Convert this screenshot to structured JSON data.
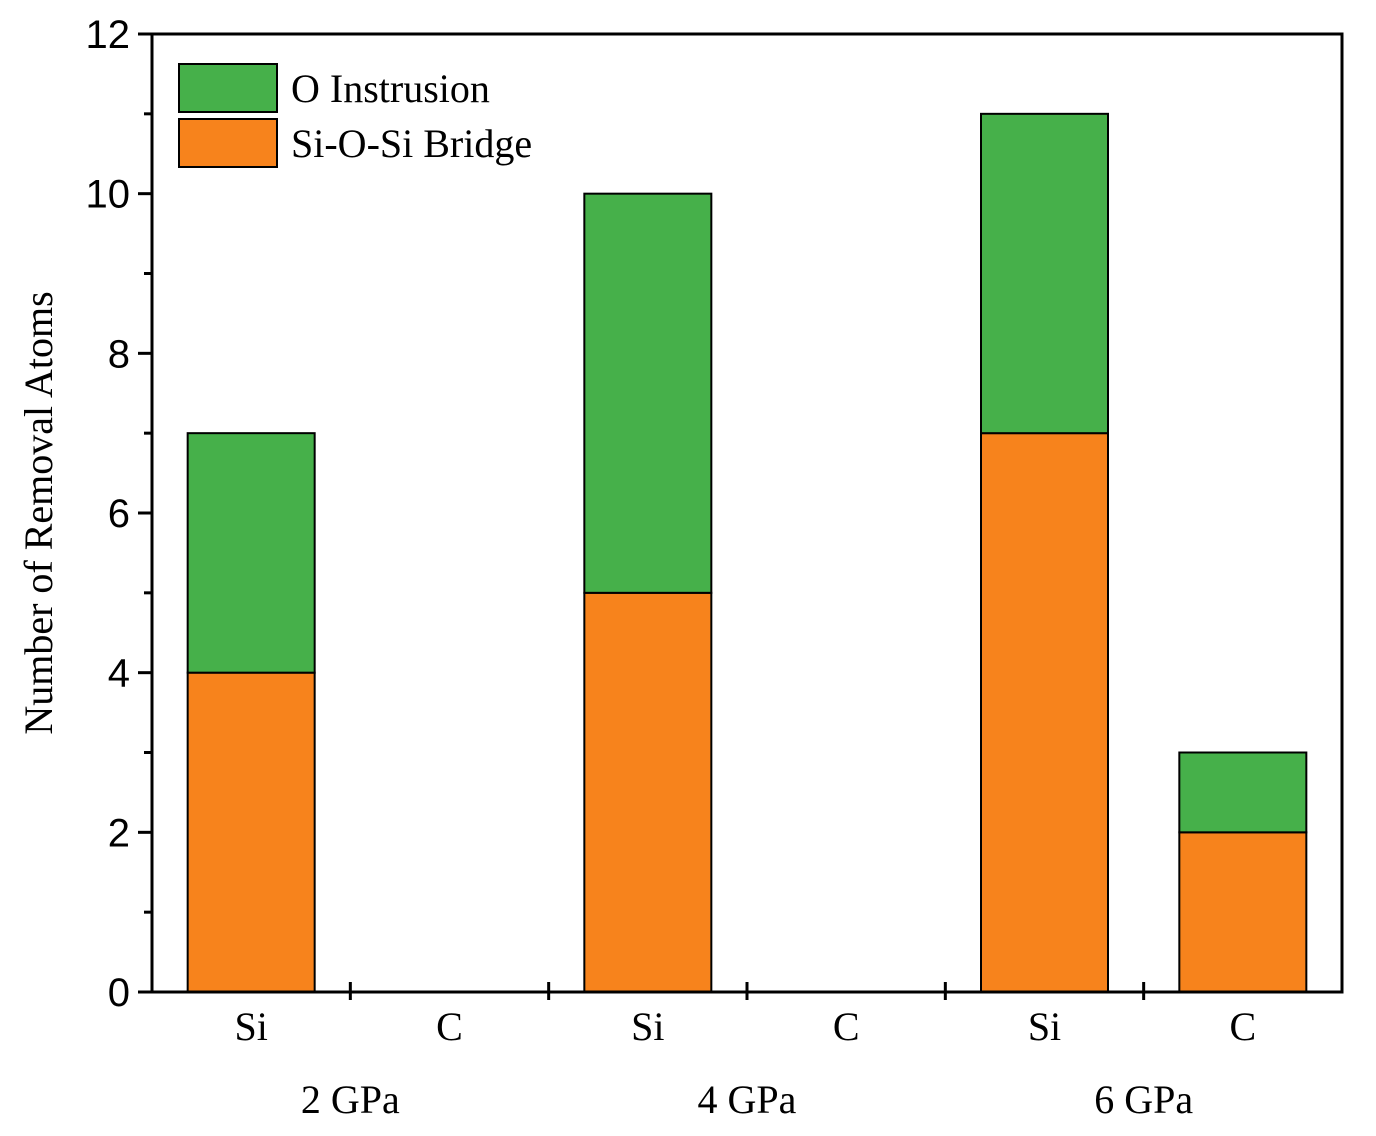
{
  "chart_data": {
    "type": "bar",
    "stacked": true,
    "title": "",
    "xlabel": "",
    "ylabel": "Number of Removal Atoms",
    "ylim": [
      0,
      12
    ],
    "yticks": [
      0,
      2,
      4,
      6,
      8,
      10,
      12
    ],
    "groups": [
      "2 GPa",
      "4 GPa",
      "6 GPa"
    ],
    "categories": [
      "Si",
      "C",
      "Si",
      "C",
      "Si",
      "C"
    ],
    "series": [
      {
        "name": "Si-O-Si Bridge",
        "color": "#f7831c",
        "values": [
          4,
          0,
          5,
          0,
          7,
          2
        ]
      },
      {
        "name": "O Instrusion",
        "color": "#46b04a",
        "values": [
          3,
          0,
          5,
          0,
          4,
          1
        ]
      }
    ],
    "legend": [
      {
        "label": "O Instrusion",
        "color": "#46b04a"
      },
      {
        "label": "Si-O-Si Bridge",
        "color": "#f7831c"
      }
    ],
    "legend_position": "top-left"
  }
}
